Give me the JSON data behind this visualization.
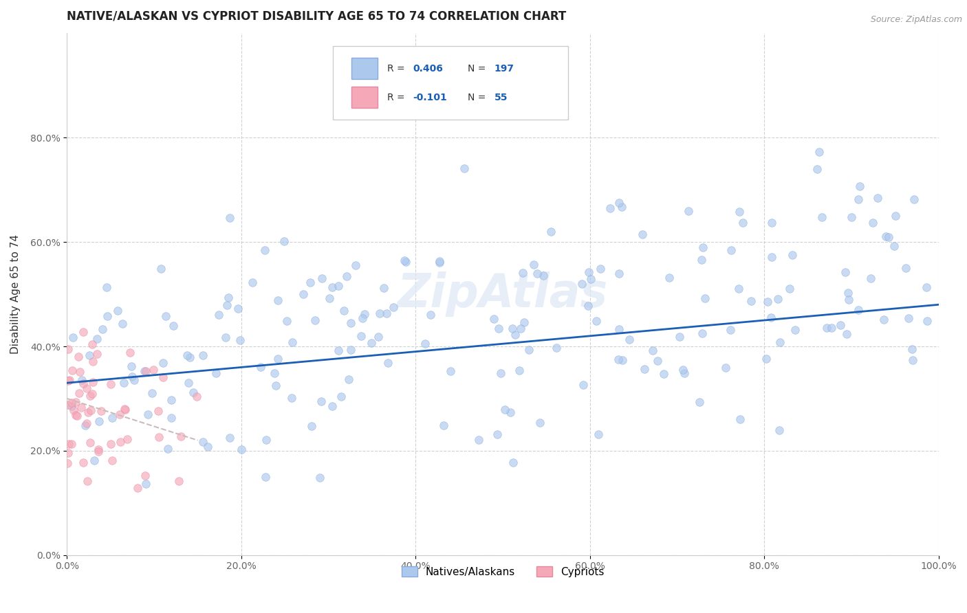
{
  "title": "NATIVE/ALASKAN VS CYPRIOT DISABILITY AGE 65 TO 74 CORRELATION CHART",
  "source": "Source: ZipAtlas.com",
  "ylabel": "Disability Age 65 to 74",
  "xlim": [
    0.0,
    1.0
  ],
  "ylim": [
    0.0,
    1.0
  ],
  "xticks": [
    0.0,
    0.2,
    0.4,
    0.6,
    0.8,
    1.0
  ],
  "yticks": [
    0.0,
    0.2,
    0.4,
    0.6,
    0.8
  ],
  "xtick_labels": [
    "0.0%",
    "20.0%",
    "40.0%",
    "60.0%",
    "80.0%",
    "100.0%"
  ],
  "ytick_labels": [
    "0.0%",
    "20.0%",
    "40.0%",
    "60.0%",
    "80.0%"
  ],
  "background_color": "#ffffff",
  "grid_color": "#cccccc",
  "native_color": "#adc8ed",
  "cypriot_color": "#f5a8b8",
  "native_edge_color": "#88aadd",
  "cypriot_edge_color": "#e888a0",
  "trend_native_color": "#1a5fb4",
  "trend_cypriot_color": "#ccbbbb",
  "R_native": 0.406,
  "N_native": 197,
  "R_cypriot": -0.101,
  "N_cypriot": 55,
  "legend_native_label": "Natives/Alaskans",
  "legend_cypriot_label": "Cypriots",
  "marker_size": 70,
  "alpha": 0.65,
  "seed": 42,
  "trend_native_x0": 0.0,
  "trend_native_y0": 0.33,
  "trend_native_x1": 1.0,
  "trend_native_y1": 0.48,
  "trend_cypriot_x0": 0.0,
  "trend_cypriot_y0": 0.3,
  "trend_cypriot_x1": 0.15,
  "trend_cypriot_y1": 0.22,
  "watermark_text": "ZipAtlas",
  "watermark_color": "#dde8f5",
  "watermark_alpha": 0.7,
  "watermark_fontsize": 48
}
